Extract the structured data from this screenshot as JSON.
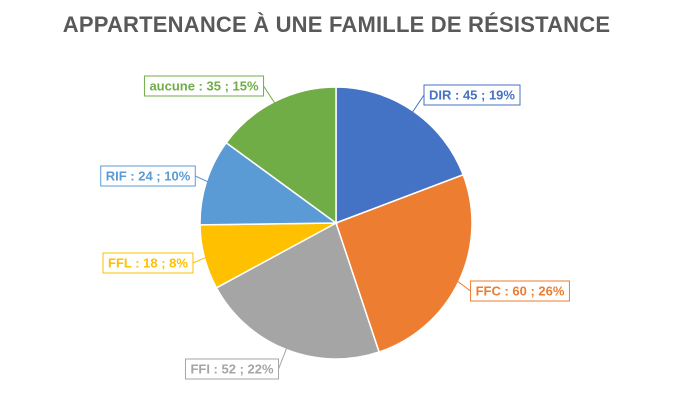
{
  "chart_data": {
    "type": "pie",
    "title": "APPARTENANCE À UNE FAMILLE DE RÉSISTANCE",
    "slices": [
      {
        "name": "DIR",
        "value": 45,
        "percent_label": "19%",
        "label": "DIR : 45 ; 19%",
        "color": "#4472C4"
      },
      {
        "name": "FFC",
        "value": 60,
        "percent_label": "26%",
        "label": "FFC : 60 ; 26%",
        "color": "#ED7D31"
      },
      {
        "name": "FFI",
        "value": 52,
        "percent_label": "22%",
        "label": "FFI : 52 ; 22%",
        "color": "#A5A5A5"
      },
      {
        "name": "FFL",
        "value": 18,
        "percent_label": "8%",
        "label": "FFL : 18 ; 8%",
        "color": "#FFC000"
      },
      {
        "name": "RIF",
        "value": 24,
        "percent_label": "10%",
        "label": "RIF : 24 ; 10%",
        "color": "#5B9BD5"
      },
      {
        "name": "aucune",
        "value": 35,
        "percent_label": "15%",
        "label": "aucune : 35 ; 15%",
        "color": "#70AD47"
      }
    ],
    "start_angle": "12 o'clock",
    "direction": "clockwise",
    "legend": "none",
    "data_labels": "callouts outside slices"
  }
}
